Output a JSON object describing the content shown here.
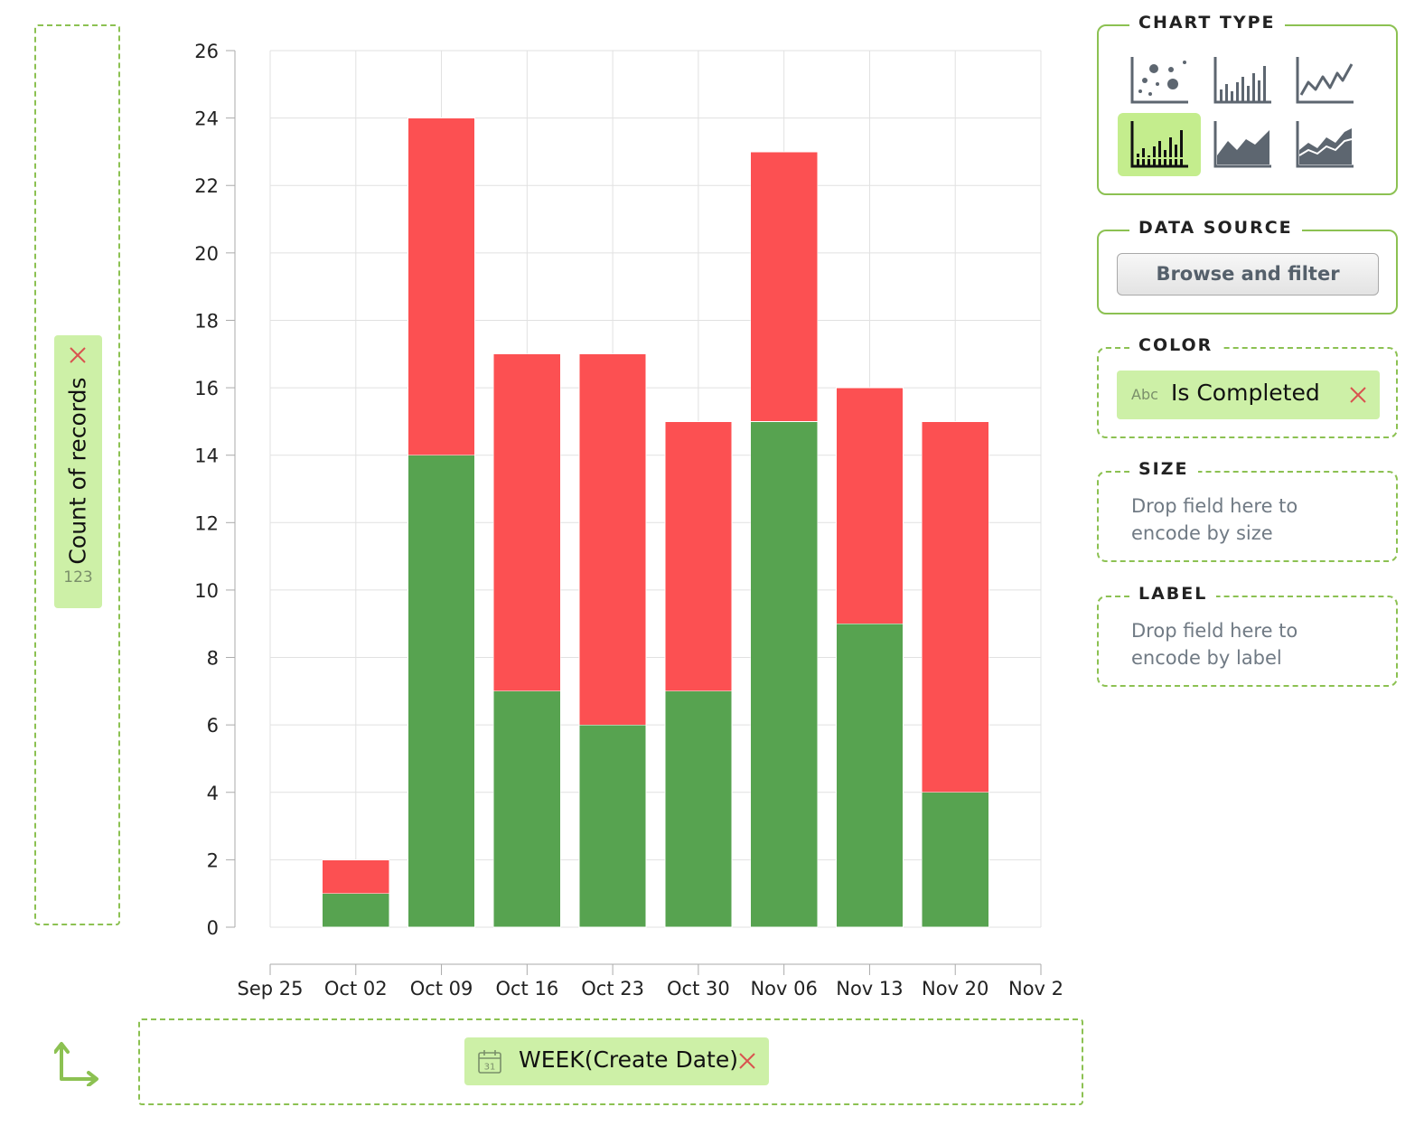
{
  "y_shelf": {
    "field_label": "Count of records",
    "type_badge": "123"
  },
  "x_shelf": {
    "field_label": "WEEK(Create Date)"
  },
  "panels": {
    "chart_type": {
      "title": "CHART TYPE",
      "options": [
        {
          "name": "scatter",
          "icon": "scatter-chart-icon",
          "selected": false
        },
        {
          "name": "bar",
          "icon": "bar-chart-icon",
          "selected": false
        },
        {
          "name": "line",
          "icon": "line-chart-icon",
          "selected": false
        },
        {
          "name": "stacked-bar",
          "icon": "stacked-bar-chart-icon",
          "selected": true
        },
        {
          "name": "area",
          "icon": "area-chart-icon",
          "selected": false
        },
        {
          "name": "stacked-area",
          "icon": "stacked-area-chart-icon",
          "selected": false
        }
      ]
    },
    "data_source": {
      "title": "DATA SOURCE",
      "button_label": "Browse and filter"
    },
    "color": {
      "title": "COLOR",
      "type_badge": "Abc",
      "field_label": "Is Completed"
    },
    "size": {
      "title": "SIZE",
      "hint": "Drop field here to encode by size"
    },
    "label": {
      "title": "LABEL",
      "hint": "Drop field here to encode by label"
    }
  },
  "colors": {
    "accent": "#8cc152",
    "pill": "#cdf0a7",
    "selected": "#c4ed8d",
    "completed": "#57a350",
    "not_completed": "#fc5052",
    "remove": "#d9534f"
  },
  "chart_data": {
    "type": "bar",
    "stacked": true,
    "x_ticks": [
      "Sep 25",
      "Oct 02",
      "Oct 09",
      "Oct 16",
      "Oct 23",
      "Oct 30",
      "Nov 06",
      "Nov 13",
      "Nov 20",
      "Nov 2"
    ],
    "categories": [
      "Oct 02",
      "Oct 09",
      "Oct 16",
      "Oct 23",
      "Oct 30",
      "Nov 06",
      "Nov 13",
      "Nov 20"
    ],
    "series": [
      {
        "values": [
          1,
          14,
          7,
          6,
          7,
          15,
          9,
          4
        ],
        "color": "#57a350"
      },
      {
        "values": [
          1,
          10,
          10,
          11,
          8,
          8,
          7,
          11
        ],
        "color": "#fc5052"
      }
    ],
    "ylim": [
      0,
      26
    ],
    "y_ticks": [
      0,
      2,
      4,
      6,
      8,
      10,
      12,
      14,
      16,
      18,
      20,
      22,
      24,
      26
    ],
    "grid": true
  }
}
